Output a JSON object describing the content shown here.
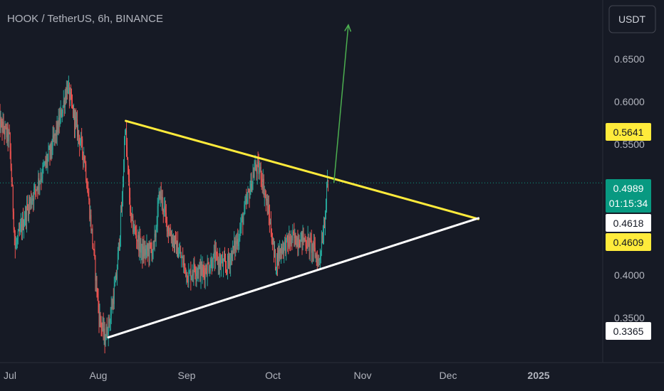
{
  "header": {
    "title": "HOOK / TetherUS, 6h, BINANCE"
  },
  "currency_button": {
    "label": "USDT"
  },
  "colors": {
    "background": "#161a25",
    "up": "#26a69a",
    "down": "#ef5350",
    "resistance": "#ffeb3b",
    "support": "#ffffff",
    "arrow": "#4caf50",
    "axis_text": "#b2b5be",
    "last_price": "#089981"
  },
  "badges": {
    "resistance_start": "0.5641",
    "last_price": "0.4989",
    "countdown": "01:15:34",
    "support_at_apex": "0.4618",
    "resistance_at_apex": "0.4609",
    "support_start": "0.3365"
  },
  "chart_data": {
    "type": "candlestick",
    "title": "HOOK / TetherUS, 6h, BINANCE",
    "interval": "6h",
    "exchange": "BINANCE",
    "currency": "USDT",
    "ylim": [
      0.31,
      0.68
    ],
    "y_ticks": [
      "0.6500",
      "0.6000",
      "0.5500",
      "0.4000",
      "0.3500"
    ],
    "x_ticks": [
      "Jul",
      "Aug",
      "Sep",
      "Oct",
      "Nov",
      "Dec",
      "2025"
    ],
    "x_range": [
      "2024-06-29",
      "2025-01-24"
    ],
    "last_price": 0.4989,
    "price_path": [
      [
        "2024-06-29",
        0.565
      ],
      [
        "2024-07-03",
        0.545
      ],
      [
        "2024-07-05",
        0.43
      ],
      [
        "2024-07-09",
        0.47
      ],
      [
        "2024-07-13",
        0.5
      ],
      [
        "2024-07-17",
        0.53
      ],
      [
        "2024-07-20",
        0.56
      ],
      [
        "2024-07-23",
        0.6
      ],
      [
        "2024-07-26",
        0.56
      ],
      [
        "2024-07-29",
        0.525
      ],
      [
        "2024-08-01",
        0.43
      ],
      [
        "2024-08-03",
        0.36
      ],
      [
        "2024-08-05",
        0.335
      ],
      [
        "2024-08-07",
        0.36
      ],
      [
        "2024-08-09",
        0.4
      ],
      [
        "2024-08-11",
        0.48
      ],
      [
        "2024-08-12",
        0.56
      ],
      [
        "2024-08-14",
        0.46
      ],
      [
        "2024-08-18",
        0.425
      ],
      [
        "2024-08-22",
        0.43
      ],
      [
        "2024-08-24",
        0.49
      ],
      [
        "2024-08-27",
        0.45
      ],
      [
        "2024-08-30",
        0.43
      ],
      [
        "2024-09-03",
        0.4
      ],
      [
        "2024-09-05",
        0.41
      ],
      [
        "2024-09-08",
        0.405
      ],
      [
        "2024-09-12",
        0.42
      ],
      [
        "2024-09-16",
        0.41
      ],
      [
        "2024-09-20",
        0.44
      ],
      [
        "2024-09-24",
        0.49
      ],
      [
        "2024-09-26",
        0.515
      ],
      [
        "2024-09-28",
        0.51
      ],
      [
        "2024-10-01",
        0.46
      ],
      [
        "2024-10-03",
        0.415
      ],
      [
        "2024-10-05",
        0.43
      ],
      [
        "2024-10-09",
        0.44
      ],
      [
        "2024-10-13",
        0.44
      ],
      [
        "2024-10-16",
        0.43
      ],
      [
        "2024-10-18",
        0.415
      ],
      [
        "2024-10-20",
        0.46
      ],
      [
        "2024-10-21",
        0.4989
      ]
    ],
    "annotations": [
      {
        "type": "trendline",
        "role": "resistance",
        "color": "yellow",
        "from": [
          "2024-08-12",
          0.5641
        ],
        "to": [
          "2024-12-12",
          0.4609
        ]
      },
      {
        "type": "trendline",
        "role": "support",
        "color": "white",
        "from": [
          "2024-08-06",
          0.3365
        ],
        "to": [
          "2024-12-12",
          0.4618
        ]
      },
      {
        "type": "arrow",
        "color": "green",
        "from": [
          "2024-10-23",
          0.4989
        ],
        "to": [
          "2024-10-28",
          0.665
        ]
      },
      {
        "type": "hline",
        "style": "dotted",
        "y": 0.4989
      }
    ]
  }
}
